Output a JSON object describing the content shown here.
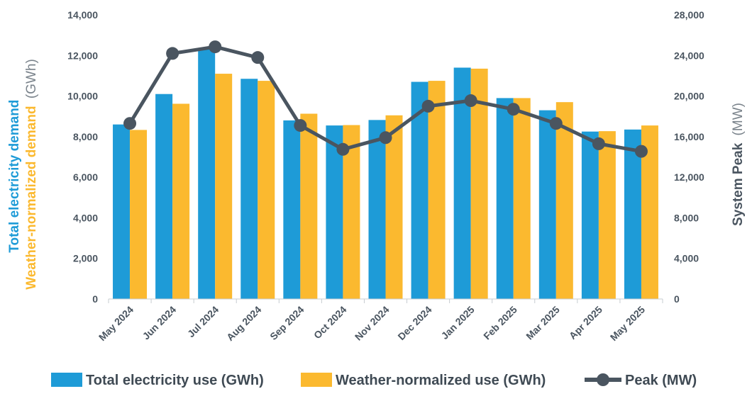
{
  "chart_data": {
    "type": "bar",
    "categories": [
      "May 2024",
      "Jun 2024",
      "Jul 2024",
      "Aug 2024",
      "Sep 2024",
      "Oct 2024",
      "Nov 2024",
      "Dec 2024",
      "Jan 2025",
      "Feb 2025",
      "Mar 2025",
      "Apr 2025",
      "May 2025"
    ],
    "series": [
      {
        "name": "Total electricity use (GWh)",
        "kind": "bar",
        "axis": "left",
        "color": "#1e9bd7",
        "values": [
          8600,
          10100,
          12300,
          10850,
          8800,
          8550,
          8820,
          10700,
          11400,
          9900,
          9300,
          8250,
          8350
        ]
      },
      {
        "name": "Weather-normalized use (GWh)",
        "kind": "bar",
        "axis": "left",
        "color": "#fbb92f",
        "values": [
          8330,
          9620,
          11100,
          10750,
          9130,
          8570,
          9050,
          10750,
          11350,
          9900,
          9700,
          8270,
          8550
        ]
      },
      {
        "name": "Peak (MW)",
        "kind": "line",
        "axis": "right",
        "color": "#4a5560",
        "values": [
          17300,
          24200,
          24850,
          23800,
          17100,
          14750,
          15900,
          19000,
          19550,
          18700,
          17300,
          15300,
          14550
        ]
      }
    ],
    "y_left": {
      "range": [
        0,
        14000
      ],
      "ticks": [
        "0",
        "2,000",
        "4,000",
        "6,000",
        "8,000",
        "10,000",
        "12,000",
        "14,000"
      ],
      "title_parts": [
        {
          "text": "Total electricity demand",
          "color": "#1e9bd7"
        },
        {
          "text": "Weather-normalized demand",
          "color": "#fbb92f"
        },
        {
          "text": "(GWh)",
          "color": "#7a838b"
        }
      ]
    },
    "y_right": {
      "range": [
        0,
        28000
      ],
      "ticks": [
        "0",
        "4,000",
        "8,000",
        "12,000",
        "16,000",
        "20,000",
        "24,000",
        "28,000"
      ],
      "title_parts": [
        {
          "text": "System Peak",
          "color": "#4a5560"
        },
        {
          "text": "(MW)",
          "color": "#7a838b"
        }
      ]
    },
    "grid": false,
    "legend_position": "bottom"
  }
}
